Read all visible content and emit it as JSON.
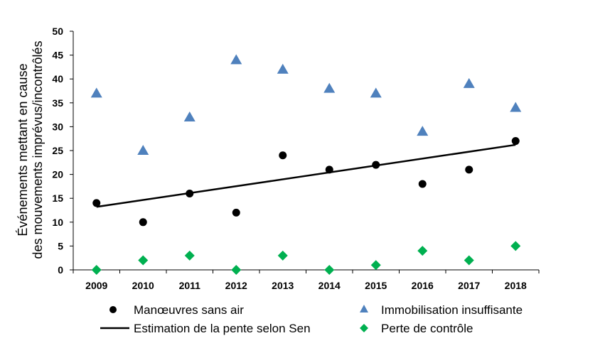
{
  "chart_data": {
    "type": "scatter",
    "title": "",
    "ylabel": [
      "Événements mettant en cause",
      "des mouvements imprévus/incontrôlés"
    ],
    "xlabel": "",
    "categories": [
      "2009",
      "2010",
      "2011",
      "2012",
      "2013",
      "2014",
      "2015",
      "2016",
      "2017",
      "2018"
    ],
    "ylim": [
      0,
      50
    ],
    "yticks": [
      0,
      5,
      10,
      15,
      20,
      25,
      30,
      35,
      40,
      45,
      50
    ],
    "grid": false,
    "legend_position": "bottom",
    "series": [
      {
        "name": "Manœuvres sans air",
        "marker": "circle",
        "color": "#000000",
        "values": [
          14,
          10,
          16,
          12,
          24,
          21,
          22,
          18,
          21,
          27
        ]
      },
      {
        "name": "Immobilisation insuffisante",
        "marker": "triangle",
        "color": "#4F81BD",
        "values": [
          37,
          25,
          32,
          44,
          42,
          38,
          37,
          29,
          39,
          34
        ]
      },
      {
        "name": "Perte de contrôle",
        "marker": "diamond",
        "color": "#00B050",
        "values": [
          0,
          2,
          3,
          0,
          3,
          0,
          1,
          4,
          2,
          5
        ]
      }
    ],
    "trendline": {
      "name": "Estimation de la pente selon Sen",
      "color": "#000000",
      "start": {
        "x": "2009",
        "y": 13.2
      },
      "end": {
        "x": "2018",
        "y": 26.2
      }
    }
  }
}
